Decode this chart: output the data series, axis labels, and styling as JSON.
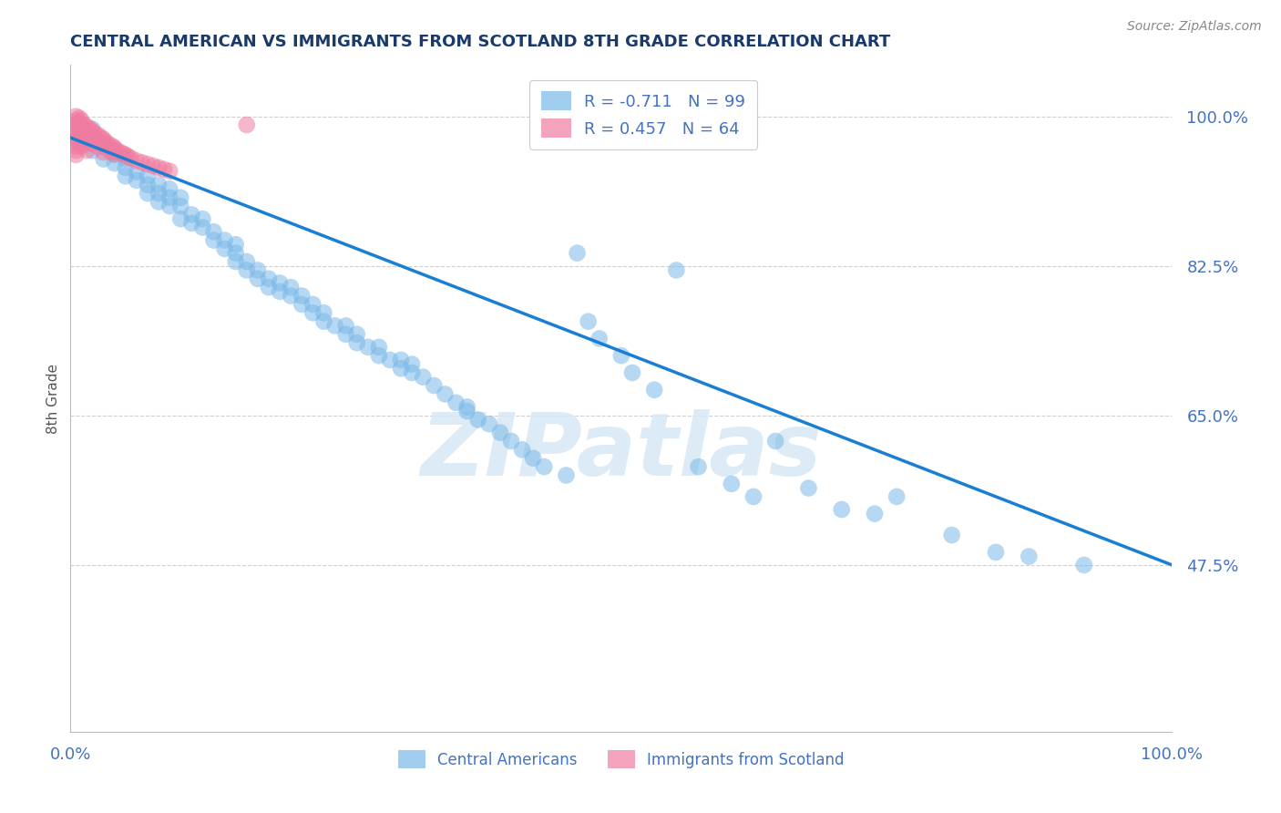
{
  "title": "CENTRAL AMERICAN VS IMMIGRANTS FROM SCOTLAND 8TH GRADE CORRELATION CHART",
  "source": "Source: ZipAtlas.com",
  "ylabel": "8th Grade",
  "xlim": [
    0.0,
    1.0
  ],
  "ylim": [
    0.28,
    1.06
  ],
  "yticks": [
    0.475,
    0.65,
    0.825,
    1.0
  ],
  "ytick_labels": [
    "47.5%",
    "65.0%",
    "82.5%",
    "100.0%"
  ],
  "xticks": [
    0.0,
    1.0
  ],
  "xtick_labels": [
    "0.0%",
    "100.0%"
  ],
  "blue_color": "#7ab8e8",
  "pink_color": "#f07ca0",
  "trendline_color": "#1a7fd4",
  "legend_R_blue": "R = -0.711",
  "legend_N_blue": "N = 99",
  "legend_R_pink": "R = 0.457",
  "legend_N_pink": "N = 64",
  "legend_label_blue": "Central Americans",
  "legend_label_pink": "Immigrants from Scotland",
  "watermark": "ZIPatlas",
  "blue_scatter_x": [
    0.01,
    0.02,
    0.02,
    0.03,
    0.03,
    0.03,
    0.04,
    0.04,
    0.04,
    0.05,
    0.05,
    0.05,
    0.06,
    0.06,
    0.07,
    0.07,
    0.07,
    0.08,
    0.08,
    0.08,
    0.09,
    0.09,
    0.09,
    0.1,
    0.1,
    0.1,
    0.11,
    0.11,
    0.12,
    0.12,
    0.13,
    0.13,
    0.14,
    0.14,
    0.15,
    0.15,
    0.15,
    0.16,
    0.16,
    0.17,
    0.17,
    0.18,
    0.18,
    0.19,
    0.19,
    0.2,
    0.2,
    0.21,
    0.21,
    0.22,
    0.22,
    0.23,
    0.23,
    0.24,
    0.25,
    0.25,
    0.26,
    0.26,
    0.27,
    0.28,
    0.28,
    0.29,
    0.3,
    0.3,
    0.31,
    0.31,
    0.32,
    0.33,
    0.34,
    0.35,
    0.36,
    0.36,
    0.37,
    0.38,
    0.39,
    0.4,
    0.41,
    0.42,
    0.43,
    0.45,
    0.46,
    0.47,
    0.48,
    0.5,
    0.51,
    0.53,
    0.55,
    0.57,
    0.6,
    0.62,
    0.64,
    0.67,
    0.7,
    0.73,
    0.75,
    0.8,
    0.84,
    0.87,
    0.92
  ],
  "blue_scatter_y": [
    0.975,
    0.96,
    0.985,
    0.95,
    0.965,
    0.97,
    0.955,
    0.945,
    0.96,
    0.94,
    0.95,
    0.93,
    0.925,
    0.935,
    0.91,
    0.92,
    0.93,
    0.9,
    0.91,
    0.92,
    0.895,
    0.905,
    0.915,
    0.88,
    0.895,
    0.905,
    0.875,
    0.885,
    0.87,
    0.88,
    0.855,
    0.865,
    0.845,
    0.855,
    0.83,
    0.84,
    0.85,
    0.82,
    0.83,
    0.81,
    0.82,
    0.8,
    0.81,
    0.795,
    0.805,
    0.79,
    0.8,
    0.78,
    0.79,
    0.77,
    0.78,
    0.76,
    0.77,
    0.755,
    0.745,
    0.755,
    0.735,
    0.745,
    0.73,
    0.72,
    0.73,
    0.715,
    0.705,
    0.715,
    0.7,
    0.71,
    0.695,
    0.685,
    0.675,
    0.665,
    0.655,
    0.66,
    0.645,
    0.64,
    0.63,
    0.62,
    0.61,
    0.6,
    0.59,
    0.58,
    0.84,
    0.76,
    0.74,
    0.72,
    0.7,
    0.68,
    0.82,
    0.59,
    0.57,
    0.555,
    0.62,
    0.565,
    0.54,
    0.535,
    0.555,
    0.51,
    0.49,
    0.485,
    0.475
  ],
  "pink_scatter_x": [
    0.005,
    0.005,
    0.005,
    0.005,
    0.005,
    0.005,
    0.005,
    0.005,
    0.005,
    0.005,
    0.008,
    0.008,
    0.008,
    0.008,
    0.008,
    0.01,
    0.01,
    0.01,
    0.01,
    0.01,
    0.012,
    0.012,
    0.012,
    0.015,
    0.015,
    0.015,
    0.015,
    0.015,
    0.018,
    0.018,
    0.02,
    0.02,
    0.02,
    0.022,
    0.022,
    0.025,
    0.025,
    0.025,
    0.028,
    0.028,
    0.03,
    0.03,
    0.03,
    0.032,
    0.035,
    0.035,
    0.038,
    0.038,
    0.04,
    0.04,
    0.042,
    0.045,
    0.048,
    0.05,
    0.052,
    0.055,
    0.06,
    0.065,
    0.07,
    0.075,
    0.08,
    0.085,
    0.09,
    0.16
  ],
  "pink_scatter_y": [
    1.0,
    0.995,
    0.99,
    0.985,
    0.98,
    0.975,
    0.97,
    0.965,
    0.96,
    0.955,
    0.998,
    0.992,
    0.985,
    0.978,
    0.97,
    0.995,
    0.988,
    0.98,
    0.972,
    0.965,
    0.99,
    0.983,
    0.975,
    0.988,
    0.981,
    0.975,
    0.968,
    0.96,
    0.985,
    0.978,
    0.982,
    0.975,
    0.968,
    0.98,
    0.972,
    0.978,
    0.971,
    0.964,
    0.975,
    0.968,
    0.973,
    0.966,
    0.958,
    0.97,
    0.967,
    0.96,
    0.965,
    0.958,
    0.963,
    0.956,
    0.96,
    0.958,
    0.956,
    0.955,
    0.953,
    0.951,
    0.948,
    0.946,
    0.944,
    0.942,
    0.94,
    0.938,
    0.936,
    0.99
  ],
  "trendline_x": [
    0.0,
    1.0
  ],
  "trendline_y": [
    0.975,
    0.475
  ],
  "grid_color": "#d0d0d0",
  "background_color": "#ffffff",
  "title_color": "#1a3a6b",
  "title_fontsize": 13,
  "tick_color": "#4472c4",
  "ylabel_color": "#555555"
}
